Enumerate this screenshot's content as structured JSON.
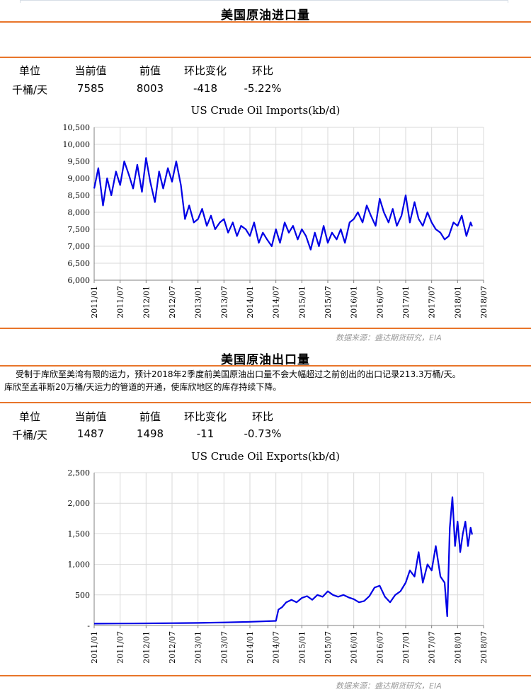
{
  "imports": {
    "section_title": "美国原油进口量",
    "table": {
      "headers": [
        "单位",
        "当前值",
        "前值",
        "环比变化",
        "环比"
      ],
      "values": [
        "千桶/天",
        "7585",
        "8003",
        "-418",
        "-5.22%"
      ]
    },
    "source_note": "数据来源：盛达期货研究，EIA"
  },
  "exports": {
    "section_title": "美国原油出口量",
    "description_line1": "受制于库欣至美湾有限的运力，预计2018年2季度前美国原油出口量不会大幅超过之前创出的出口记录213.3万桶/天。",
    "description_line2": "库欣至孟菲斯20万桶/天运力的管道的开通，使库欣地区的库存持续下降。",
    "table": {
      "headers": [
        "单位",
        "当前值",
        "前值",
        "环比变化",
        "环比"
      ],
      "values": [
        "千桶/天",
        "1487",
        "1498",
        "-11",
        "-0.73%"
      ]
    },
    "source_note": "数据来源：盛达期货研究，EIA"
  },
  "colors": {
    "accent": "#e8752a",
    "series": "#0000e6",
    "grid": "#d9d9d9"
  },
  "chart_data": [
    {
      "type": "line",
      "title": "US Crude Oil Imports(kb/d)",
      "xlabel": "",
      "ylabel": "",
      "xlim": [
        2011.0,
        2018.5
      ],
      "ylim": [
        6000,
        10500
      ],
      "y_ticks": [
        6000,
        6500,
        7000,
        7500,
        8000,
        8500,
        9000,
        9500,
        10000,
        10500
      ],
      "y_tick_labels": [
        "6,000",
        "6,500",
        "7,000",
        "7,500",
        "8,000",
        "8,500",
        "9,000",
        "9,500",
        "10,000",
        "10,500"
      ],
      "x_tick_labels": [
        "2011/01",
        "2011/07",
        "2012/01",
        "2012/07",
        "2013/01",
        "2013/07",
        "2014/01",
        "2014/07",
        "2015/01",
        "2015/07",
        "2016/01",
        "2016/07",
        "2017/01",
        "2017/07",
        "2018/01",
        "2018/07"
      ],
      "grid": true,
      "legend": "none",
      "series": [
        {
          "x": [
            2011.0,
            2011.08,
            2011.17,
            2011.25,
            2011.33,
            2011.42,
            2011.5,
            2011.58,
            2011.67,
            2011.75,
            2011.83,
            2011.92,
            2012.0,
            2012.08,
            2012.17,
            2012.25,
            2012.33,
            2012.42,
            2012.5,
            2012.58,
            2012.67,
            2012.75,
            2012.83,
            2012.92,
            2013.0,
            2013.08,
            2013.17,
            2013.25,
            2013.33,
            2013.42,
            2013.5,
            2013.58,
            2013.67,
            2013.75,
            2013.83,
            2013.92,
            2014.0,
            2014.08,
            2014.17,
            2014.25,
            2014.33,
            2014.42,
            2014.5,
            2014.58,
            2014.67,
            2014.75,
            2014.83,
            2014.92,
            2015.0,
            2015.08,
            2015.17,
            2015.25,
            2015.33,
            2015.42,
            2015.5,
            2015.58,
            2015.67,
            2015.75,
            2015.83,
            2015.92,
            2016.0,
            2016.08,
            2016.17,
            2016.25,
            2016.33,
            2016.42,
            2016.5,
            2016.58,
            2016.67,
            2016.75,
            2016.83,
            2016.92,
            2017.0,
            2017.08,
            2017.17,
            2017.25,
            2017.33,
            2017.42,
            2017.5,
            2017.58,
            2017.67,
            2017.75,
            2017.83,
            2017.92,
            2018.0,
            2018.08,
            2018.17,
            2018.25,
            2018.28
          ],
          "y": [
            8700,
            9300,
            8200,
            9000,
            8500,
            9200,
            8800,
            9500,
            9100,
            8700,
            9400,
            8600,
            9600,
            8900,
            8300,
            9200,
            8700,
            9300,
            8900,
            9500,
            8800,
            7800,
            8200,
            7700,
            7800,
            8100,
            7600,
            7900,
            7500,
            7700,
            7800,
            7400,
            7700,
            7300,
            7600,
            7500,
            7300,
            7700,
            7100,
            7400,
            7200,
            7000,
            7500,
            7100,
            7700,
            7400,
            7600,
            7200,
            7500,
            7300,
            6900,
            7400,
            7000,
            7600,
            7100,
            7400,
            7200,
            7500,
            7100,
            7700,
            7800,
            8000,
            7700,
            8200,
            7900,
            7600,
            8400,
            8000,
            7700,
            8100,
            7600,
            7900,
            8500,
            7700,
            8300,
            7800,
            7600,
            8000,
            7700,
            7500,
            7400,
            7200,
            7300,
            7700,
            7600,
            7900,
            7300,
            7700,
            7585
          ]
        }
      ]
    },
    {
      "type": "line",
      "title": "US Crude Oil Exports(kb/d)",
      "xlabel": "",
      "ylabel": "",
      "xlim": [
        2011.0,
        2018.5
      ],
      "ylim": [
        0,
        2500
      ],
      "y_ticks": [
        0,
        500,
        1000,
        1500,
        2000,
        2500
      ],
      "y_tick_labels": [
        "-",
        "500",
        "1,000",
        "1,500",
        "2,000",
        "2,500"
      ],
      "x_tick_labels": [
        "2011/01",
        "2011/07",
        "2012/01",
        "2012/07",
        "2013/01",
        "2013/07",
        "2014/01",
        "2014/07",
        "2015/01",
        "2015/07",
        "2016/01",
        "2016/07",
        "2017/01",
        "2017/07",
        "2018/01",
        "2018/07"
      ],
      "grid": true,
      "legend": "none",
      "series": [
        {
          "x": [
            2011.0,
            2011.5,
            2012.0,
            2012.5,
            2013.0,
            2013.5,
            2014.0,
            2014.5,
            2014.55,
            2014.62,
            2014.7,
            2014.8,
            2014.9,
            2015.0,
            2015.1,
            2015.2,
            2015.3,
            2015.4,
            2015.5,
            2015.6,
            2015.7,
            2015.8,
            2015.9,
            2016.0,
            2016.1,
            2016.2,
            2016.3,
            2016.4,
            2016.5,
            2016.6,
            2016.7,
            2016.8,
            2016.9,
            2017.0,
            2017.08,
            2017.17,
            2017.25,
            2017.33,
            2017.42,
            2017.5,
            2017.58,
            2017.67,
            2017.75,
            2017.8,
            2017.85,
            2017.9,
            2017.95,
            2018.0,
            2018.05,
            2018.1,
            2018.15,
            2018.2,
            2018.25,
            2018.28
          ],
          "y": [
            30,
            32,
            35,
            38,
            42,
            50,
            60,
            75,
            260,
            300,
            380,
            420,
            380,
            450,
            480,
            420,
            500,
            470,
            560,
            500,
            470,
            500,
            460,
            430,
            380,
            400,
            480,
            620,
            650,
            470,
            380,
            500,
            560,
            700,
            900,
            800,
            1200,
            700,
            1000,
            900,
            1300,
            800,
            700,
            150,
            1600,
            2100,
            1300,
            1700,
            1200,
            1500,
            1700,
            1300,
            1600,
            1487
          ]
        }
      ]
    }
  ]
}
